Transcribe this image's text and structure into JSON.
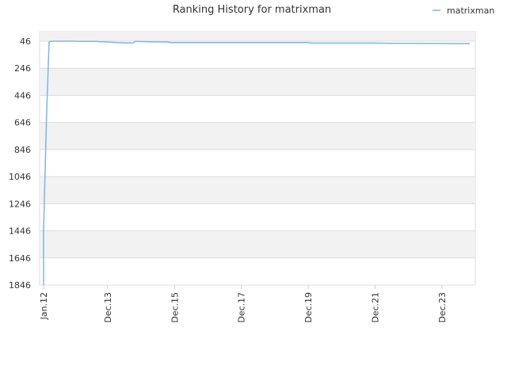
{
  "chart_data": {
    "type": "line",
    "title": "Ranking History for matrixman",
    "xlabel": "",
    "ylabel": "",
    "y_inverted": true,
    "ylim": [
      46,
      1846
    ],
    "yticks": [
      46,
      246,
      446,
      646,
      846,
      1046,
      1246,
      1446,
      1646,
      1846
    ],
    "xticks": [
      "Jan.12",
      "Dec.13",
      "Dec.15",
      "Dec.17",
      "Dec.19",
      "Dec.21",
      "Dec.23"
    ],
    "xlim": [
      "2012-01",
      "2024-12"
    ],
    "grid": "horizontal-bands",
    "legend_placement": "top-right",
    "colors": {
      "series": "#7cb5ec",
      "band": "#f2f2f2",
      "gridline": "#dddddd"
    },
    "series": [
      {
        "name": "matrixman",
        "points": [
          [
            "2012-01",
            1846
          ],
          [
            "2012-01",
            1446
          ],
          [
            "2012-02",
            660
          ],
          [
            "2012-02",
            646
          ],
          [
            "2012-03",
            52
          ],
          [
            "2012-04",
            46
          ],
          [
            "2012-06",
            46
          ],
          [
            "2012-12",
            46
          ],
          [
            "2013-01",
            48
          ],
          [
            "2013-08",
            48
          ],
          [
            "2013-09",
            50
          ],
          [
            "2013-12",
            52
          ],
          [
            "2014-03",
            56
          ],
          [
            "2014-06",
            58
          ],
          [
            "2014-09",
            60
          ],
          [
            "2014-10",
            48
          ],
          [
            "2015-03",
            50
          ],
          [
            "2015-09",
            52
          ],
          [
            "2015-11",
            56
          ],
          [
            "2016-12",
            56
          ],
          [
            "2018-12",
            56
          ],
          [
            "2019-12",
            56
          ],
          [
            "2020-01",
            60
          ],
          [
            "2021-12",
            60
          ],
          [
            "2022-06",
            62
          ],
          [
            "2024-10",
            64
          ]
        ]
      }
    ]
  }
}
